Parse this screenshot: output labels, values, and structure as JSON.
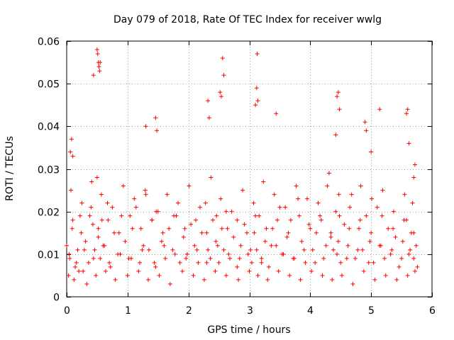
{
  "chart_data": {
    "type": "scatter",
    "title": "Day 079 of 2018, Rate Of TEC Index for receiver wwlg",
    "xlabel": "GPS time / hours",
    "ylabel": "ROTI / TECUs",
    "xlim": [
      0,
      6
    ],
    "ylim": [
      0,
      0.06
    ],
    "x_ticks": [
      0,
      1,
      2,
      3,
      4,
      5,
      6
    ],
    "x_tick_labels": [
      "0",
      "1",
      "2",
      "3",
      "4",
      "5",
      "6"
    ],
    "y_ticks": [
      0,
      0.01,
      0.02,
      0.03,
      0.04,
      0.05,
      0.06
    ],
    "y_tick_labels": [
      "0",
      "0.01",
      "0.02",
      "0.03",
      "0.04",
      "0.05",
      "0.06"
    ],
    "grid": true,
    "marker": "plus",
    "color": "#ff0000",
    "series": [
      {
        "name": "ROTI",
        "x": [
          0.0,
          0.05,
          0.09,
          0.14,
          0.18,
          0.22,
          0.27,
          0.31,
          0.36,
          0.4,
          0.43,
          0.46,
          0.5,
          0.52,
          0.55,
          0.58,
          0.62,
          0.67,
          0.72,
          0.78,
          0.84,
          0.9,
          0.96,
          1.02,
          1.08,
          1.14,
          1.2,
          1.26,
          1.3,
          1.35,
          1.4,
          1.46,
          1.5,
          1.56,
          1.62,
          1.68,
          1.74,
          1.8,
          1.86,
          1.92,
          1.98,
          2.04,
          2.1,
          2.16,
          2.22,
          2.28,
          2.32,
          2.36,
          2.4,
          2.45,
          2.5,
          2.55,
          2.58,
          2.62,
          2.68,
          2.74,
          2.8,
          2.86,
          2.92,
          2.98,
          3.04,
          3.08,
          3.12,
          3.16,
          3.2,
          3.26,
          3.32,
          3.38,
          3.44,
          3.5,
          3.56,
          3.62,
          3.68,
          3.74,
          3.8,
          3.86,
          3.92,
          3.98,
          4.04,
          4.1,
          4.16,
          4.22,
          4.28,
          4.34,
          4.38,
          4.42,
          4.46,
          4.5,
          4.56,
          4.62,
          4.68,
          4.74,
          4.8,
          4.86,
          4.92,
          4.98,
          5.04,
          5.1,
          5.16,
          5.22,
          5.28,
          5.34,
          5.4,
          5.46,
          5.52,
          5.58,
          5.62,
          5.66,
          5.7,
          5.74,
          5.76,
          0.03,
          0.12,
          0.2,
          0.33,
          0.48,
          0.64,
          0.8,
          1.0,
          1.18,
          1.34,
          1.52,
          1.7,
          1.9,
          2.08,
          2.26,
          2.44,
          2.62,
          2.82,
          3.0,
          3.14,
          3.3,
          3.48,
          3.66,
          3.84,
          4.02,
          4.2,
          4.36,
          4.52,
          4.7,
          4.88,
          5.06,
          5.24,
          5.42,
          5.6,
          5.72,
          0.07,
          0.25,
          0.41,
          0.57,
          0.75,
          0.93,
          1.11,
          1.29,
          1.47,
          1.65,
          1.83,
          2.01,
          2.19,
          2.37,
          2.53,
          2.71,
          2.89,
          3.07,
          3.23,
          3.41,
          3.59,
          3.77,
          3.95,
          4.13,
          4.31,
          4.47,
          4.65,
          4.83,
          5.01,
          5.19,
          5.37,
          5.55,
          5.68,
          0.04,
          0.16,
          0.29,
          0.44,
          0.6,
          0.7,
          0.88,
          1.06,
          1.24,
          1.44,
          1.6,
          1.78,
          1.96,
          2.14,
          2.3,
          2.48,
          2.66,
          2.84,
          3.02,
          3.2,
          3.36,
          3.54,
          3.72,
          3.9,
          4.08,
          4.26,
          4.44,
          4.6,
          4.78,
          4.96,
          5.14,
          5.32,
          5.5,
          5.64,
          0.1,
          0.24,
          0.38,
          0.52,
          0.68,
          0.86,
          1.04,
          1.22,
          1.4,
          1.58,
          1.76,
          1.94,
          2.12,
          2.3,
          2.46,
          2.64,
          2.8,
          2.96,
          3.1,
          3.28,
          3.46,
          3.64,
          3.82,
          4.0,
          4.18,
          4.34,
          4.48,
          4.64,
          4.82,
          5.0,
          5.18,
          5.36,
          5.54,
          5.7,
          0.06,
          0.08,
          0.1,
          0.44,
          0.5,
          0.51,
          0.52,
          0.53,
          0.54,
          0.55,
          1.3,
          1.46,
          1.48,
          2.32,
          2.34,
          2.52,
          2.54,
          2.56,
          2.58,
          3.1,
          3.12,
          3.13,
          3.14,
          3.44,
          4.42,
          4.44,
          4.46,
          4.48,
          4.9,
          4.92,
          5.0,
          5.14,
          5.58,
          5.6,
          5.62,
          5.7,
          5.72
        ],
        "y": [
          0.012,
          0.009,
          0.016,
          0.007,
          0.011,
          0.019,
          0.006,
          0.013,
          0.008,
          0.021,
          0.017,
          0.011,
          0.028,
          0.014,
          0.009,
          0.018,
          0.012,
          0.022,
          0.007,
          0.015,
          0.01,
          0.019,
          0.013,
          0.009,
          0.016,
          0.021,
          0.008,
          0.012,
          0.024,
          0.011,
          0.018,
          0.007,
          0.02,
          0.013,
          0.009,
          0.016,
          0.011,
          0.019,
          0.008,
          0.014,
          0.01,
          0.017,
          0.012,
          0.008,
          0.015,
          0.022,
          0.011,
          0.009,
          0.018,
          0.013,
          0.008,
          0.016,
          0.011,
          0.02,
          0.009,
          0.014,
          0.007,
          0.012,
          0.017,
          0.01,
          0.008,
          0.015,
          0.011,
          0.019,
          0.009,
          0.013,
          0.007,
          0.016,
          0.012,
          0.021,
          0.01,
          0.014,
          0.018,
          0.009,
          0.023,
          0.013,
          0.008,
          0.017,
          0.011,
          0.015,
          0.019,
          0.009,
          0.026,
          0.014,
          0.011,
          0.02,
          0.013,
          0.008,
          0.017,
          0.012,
          0.024,
          0.009,
          0.016,
          0.011,
          0.019,
          0.013,
          0.008,
          0.021,
          0.012,
          0.009,
          0.016,
          0.011,
          0.014,
          0.007,
          0.013,
          0.018,
          0.01,
          0.015,
          0.009,
          0.012,
          0.007,
          0.005,
          0.004,
          0.006,
          0.003,
          0.005,
          0.006,
          0.004,
          0.005,
          0.006,
          0.004,
          0.005,
          0.003,
          0.006,
          0.005,
          0.004,
          0.006,
          0.005,
          0.004,
          0.006,
          0.005,
          0.004,
          0.006,
          0.005,
          0.004,
          0.006,
          0.005,
          0.004,
          0.005,
          0.003,
          0.006,
          0.004,
          0.005,
          0.004,
          0.005,
          0.006,
          0.025,
          0.022,
          0.027,
          0.024,
          0.021,
          0.026,
          0.023,
          0.025,
          0.02,
          0.024,
          0.022,
          0.026,
          0.021,
          0.028,
          0.023,
          0.02,
          0.025,
          0.022,
          0.027,
          0.024,
          0.021,
          0.026,
          0.023,
          0.022,
          0.029,
          0.024,
          0.021,
          0.026,
          0.023,
          0.025,
          0.02,
          0.024,
          0.022,
          0.01,
          0.008,
          0.011,
          0.009,
          0.012,
          0.008,
          0.01,
          0.009,
          0.011,
          0.008,
          0.012,
          0.01,
          0.009,
          0.011,
          0.008,
          0.012,
          0.01,
          0.009,
          0.011,
          0.008,
          0.012,
          0.01,
          0.009,
          0.011,
          0.008,
          0.012,
          0.01,
          0.009,
          0.011,
          0.008,
          0.012,
          0.01,
          0.009,
          0.011,
          0.018,
          0.015,
          0.019,
          0.016,
          0.018,
          0.015,
          0.019,
          0.016,
          0.018,
          0.015,
          0.019,
          0.016,
          0.018,
          0.015,
          0.019,
          0.016,
          0.018,
          0.015,
          0.019,
          0.016,
          0.018,
          0.015,
          0.019,
          0.016,
          0.018,
          0.015,
          0.019,
          0.016,
          0.018,
          0.015,
          0.019,
          0.016,
          0.018,
          0.015,
          0.034,
          0.037,
          0.033,
          0.052,
          0.058,
          0.057,
          0.055,
          0.054,
          0.053,
          0.055,
          0.04,
          0.042,
          0.039,
          0.046,
          0.042,
          0.048,
          0.047,
          0.056,
          0.052,
          0.045,
          0.049,
          0.057,
          0.046,
          0.043,
          0.038,
          0.047,
          0.048,
          0.044,
          0.041,
          0.039,
          0.034,
          0.044,
          0.043,
          0.044,
          0.036,
          0.028,
          0.031
        ]
      }
    ]
  }
}
